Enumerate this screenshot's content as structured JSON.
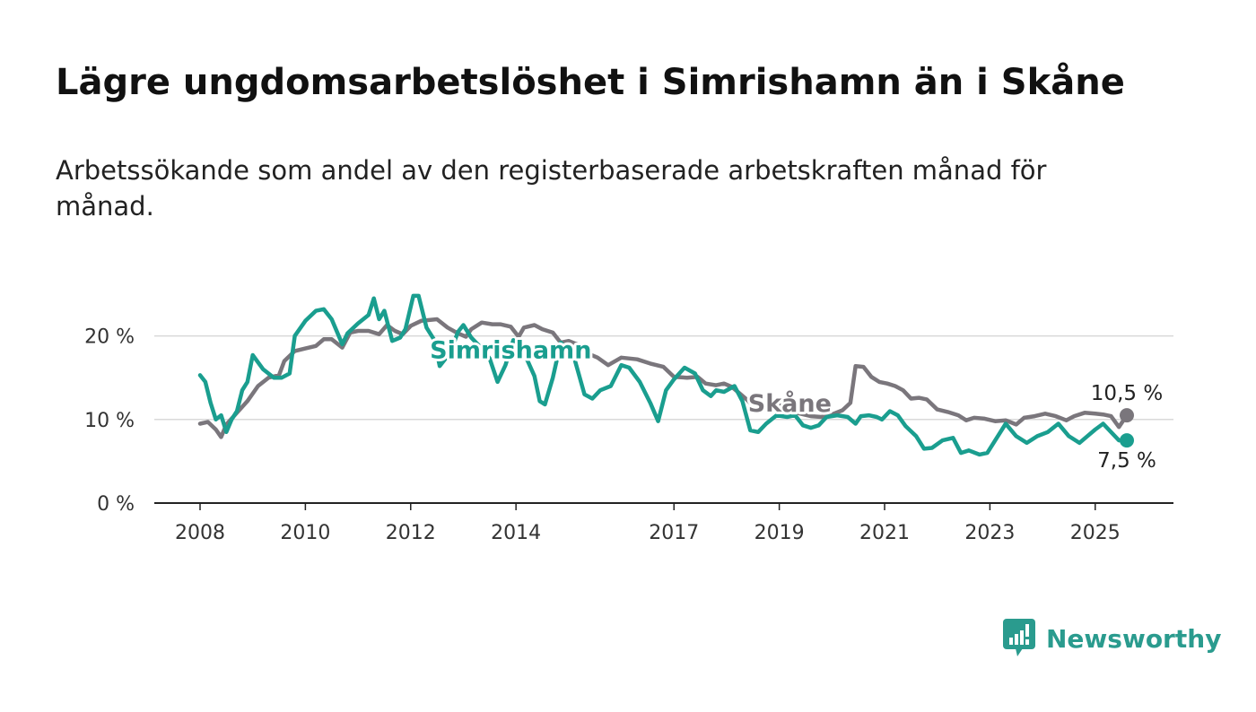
{
  "title": "Lägre ungdomsarbetslöshet i Simrishamn än i Skåne",
  "subtitle": "Arbetssökande som andel av den registerbaserade arbetskraften månad för månad.",
  "brand": {
    "name": "Newsworthy",
    "icon": "newsworthy-logo-icon",
    "color": "#2a9b8e"
  },
  "chart_data": {
    "type": "line",
    "title": "Lägre ungdomsarbetslöshet i Simrishamn än i Skåne",
    "subtitle": "Arbetssökande som andel av den registerbaserade arbetskraften månad för månad.",
    "xlim": [
      2008,
      2025.6
    ],
    "ylim": [
      0,
      25
    ],
    "x_ticks": [
      2008,
      2010,
      2012,
      2014,
      2017,
      2019,
      2021,
      2023,
      2025
    ],
    "x_tick_labels": [
      "2008",
      "2010",
      "2012",
      "2014",
      "2017",
      "2019",
      "2021",
      "2023",
      "2025"
    ],
    "y_ticks": [
      0,
      10,
      20
    ],
    "y_tick_labels": [
      "0 %",
      "10 %",
      "20 %"
    ],
    "grid": true,
    "series": [
      {
        "name": "Skåne",
        "color": "#7a767c",
        "end_label": "10,5 %",
        "points": [
          [
            2008.0,
            9.5
          ],
          [
            2008.15,
            9.7
          ],
          [
            2008.3,
            8.8
          ],
          [
            2008.4,
            7.9
          ],
          [
            2008.5,
            9.4
          ],
          [
            2008.7,
            10.8
          ],
          [
            2008.9,
            12.2
          ],
          [
            2009.1,
            14.0
          ],
          [
            2009.3,
            15.0
          ],
          [
            2009.5,
            15.3
          ],
          [
            2009.6,
            17.0
          ],
          [
            2009.8,
            18.2
          ],
          [
            2010.0,
            18.5
          ],
          [
            2010.2,
            18.8
          ],
          [
            2010.35,
            19.6
          ],
          [
            2010.5,
            19.6
          ],
          [
            2010.7,
            18.6
          ],
          [
            2010.85,
            20.4
          ],
          [
            2011.0,
            20.6
          ],
          [
            2011.2,
            20.6
          ],
          [
            2011.4,
            20.2
          ],
          [
            2011.55,
            21.3
          ],
          [
            2011.7,
            20.6
          ],
          [
            2011.85,
            20.2
          ],
          [
            2012.0,
            21.2
          ],
          [
            2012.2,
            21.8
          ],
          [
            2012.5,
            22.0
          ],
          [
            2012.7,
            21.0
          ],
          [
            2012.9,
            20.3
          ],
          [
            2013.05,
            19.9
          ],
          [
            2013.15,
            20.8
          ],
          [
            2013.35,
            21.6
          ],
          [
            2013.55,
            21.4
          ],
          [
            2013.7,
            21.4
          ],
          [
            2013.9,
            21.1
          ],
          [
            2014.05,
            19.9
          ],
          [
            2014.15,
            21.0
          ],
          [
            2014.35,
            21.3
          ],
          [
            2014.5,
            20.8
          ],
          [
            2014.7,
            20.4
          ],
          [
            2014.85,
            19.2
          ],
          [
            2015.0,
            19.4
          ],
          [
            2015.2,
            18.9
          ],
          [
            2015.4,
            17.8
          ],
          [
            2015.55,
            17.4
          ],
          [
            2015.75,
            16.5
          ],
          [
            2016.0,
            17.4
          ],
          [
            2016.3,
            17.2
          ],
          [
            2016.55,
            16.7
          ],
          [
            2016.8,
            16.3
          ],
          [
            2017.0,
            15.1
          ],
          [
            2017.25,
            15.0
          ],
          [
            2017.45,
            15.1
          ],
          [
            2017.6,
            14.3
          ],
          [
            2017.8,
            14.1
          ],
          [
            2017.95,
            14.3
          ],
          [
            2018.1,
            13.9
          ],
          [
            2018.25,
            13.1
          ],
          [
            2018.4,
            12.3
          ],
          [
            2018.55,
            11.3
          ],
          [
            2018.7,
            11.2
          ],
          [
            2018.85,
            12.0
          ],
          [
            2019.05,
            11.6
          ],
          [
            2019.2,
            11.0
          ],
          [
            2019.4,
            10.7
          ],
          [
            2019.6,
            10.4
          ],
          [
            2019.8,
            10.3
          ],
          [
            2020.0,
            10.6
          ],
          [
            2020.2,
            11.1
          ],
          [
            2020.35,
            12.0
          ],
          [
            2020.45,
            16.4
          ],
          [
            2020.6,
            16.3
          ],
          [
            2020.75,
            15.1
          ],
          [
            2020.9,
            14.5
          ],
          [
            2021.05,
            14.3
          ],
          [
            2021.2,
            14.0
          ],
          [
            2021.35,
            13.5
          ],
          [
            2021.5,
            12.5
          ],
          [
            2021.65,
            12.6
          ],
          [
            2021.8,
            12.4
          ],
          [
            2022.0,
            11.2
          ],
          [
            2022.2,
            10.9
          ],
          [
            2022.4,
            10.5
          ],
          [
            2022.55,
            9.9
          ],
          [
            2022.7,
            10.2
          ],
          [
            2022.9,
            10.1
          ],
          [
            2023.1,
            9.8
          ],
          [
            2023.3,
            9.9
          ],
          [
            2023.5,
            9.4
          ],
          [
            2023.65,
            10.2
          ],
          [
            2023.85,
            10.4
          ],
          [
            2024.05,
            10.7
          ],
          [
            2024.25,
            10.4
          ],
          [
            2024.45,
            9.9
          ],
          [
            2024.6,
            10.4
          ],
          [
            2024.8,
            10.8
          ],
          [
            2025.0,
            10.7
          ],
          [
            2025.15,
            10.6
          ],
          [
            2025.3,
            10.4
          ],
          [
            2025.45,
            9.1
          ],
          [
            2025.6,
            10.5
          ]
        ]
      },
      {
        "name": "Simrishamn",
        "color": "#1a9e8f",
        "end_label": "7,5 %",
        "points": [
          [
            2008.0,
            15.3
          ],
          [
            2008.1,
            14.5
          ],
          [
            2008.2,
            12.0
          ],
          [
            2008.3,
            10.0
          ],
          [
            2008.4,
            10.5
          ],
          [
            2008.5,
            8.5
          ],
          [
            2008.6,
            10.0
          ],
          [
            2008.7,
            11.0
          ],
          [
            2008.8,
            13.5
          ],
          [
            2008.9,
            14.5
          ],
          [
            2009.0,
            17.7
          ],
          [
            2009.2,
            16.0
          ],
          [
            2009.4,
            15.0
          ],
          [
            2009.55,
            15.0
          ],
          [
            2009.7,
            15.5
          ],
          [
            2009.8,
            20.0
          ],
          [
            2010.0,
            21.8
          ],
          [
            2010.2,
            23.0
          ],
          [
            2010.35,
            23.2
          ],
          [
            2010.5,
            22.0
          ],
          [
            2010.7,
            19.0
          ],
          [
            2010.8,
            20.3
          ],
          [
            2011.0,
            21.5
          ],
          [
            2011.2,
            22.5
          ],
          [
            2011.3,
            24.5
          ],
          [
            2011.4,
            22.0
          ],
          [
            2011.5,
            23.0
          ],
          [
            2011.65,
            19.4
          ],
          [
            2011.8,
            19.8
          ],
          [
            2011.9,
            20.8
          ],
          [
            2012.05,
            24.8
          ],
          [
            2012.15,
            24.8
          ],
          [
            2012.3,
            21.0
          ],
          [
            2012.45,
            19.5
          ],
          [
            2012.55,
            16.4
          ],
          [
            2012.75,
            18.0
          ],
          [
            2012.9,
            20.5
          ],
          [
            2013.0,
            21.3
          ],
          [
            2013.15,
            19.8
          ],
          [
            2013.35,
            18.5
          ],
          [
            2013.5,
            17.3
          ],
          [
            2013.65,
            14.5
          ],
          [
            2013.8,
            16.5
          ],
          [
            2013.95,
            19.5
          ],
          [
            2014.15,
            18.0
          ],
          [
            2014.35,
            15.2
          ],
          [
            2014.45,
            12.2
          ],
          [
            2014.55,
            11.8
          ],
          [
            2014.7,
            15.0
          ],
          [
            2014.85,
            19.2
          ],
          [
            2015.1,
            17.5
          ],
          [
            2015.3,
            13.0
          ],
          [
            2015.45,
            12.5
          ],
          [
            2015.6,
            13.5
          ],
          [
            2015.8,
            14.0
          ],
          [
            2016.0,
            16.5
          ],
          [
            2016.15,
            16.2
          ],
          [
            2016.35,
            14.5
          ],
          [
            2016.55,
            12.0
          ],
          [
            2016.7,
            9.8
          ],
          [
            2016.85,
            13.5
          ],
          [
            2017.0,
            14.8
          ],
          [
            2017.2,
            16.2
          ],
          [
            2017.4,
            15.5
          ],
          [
            2017.55,
            13.5
          ],
          [
            2017.7,
            12.8
          ],
          [
            2017.8,
            13.5
          ],
          [
            2017.95,
            13.3
          ],
          [
            2018.15,
            14.0
          ],
          [
            2018.3,
            12.2
          ],
          [
            2018.45,
            8.7
          ],
          [
            2018.6,
            8.5
          ],
          [
            2018.75,
            9.5
          ],
          [
            2018.95,
            10.5
          ],
          [
            2019.15,
            10.3
          ],
          [
            2019.3,
            10.5
          ],
          [
            2019.45,
            9.3
          ],
          [
            2019.6,
            9.0
          ],
          [
            2019.75,
            9.3
          ],
          [
            2019.9,
            10.3
          ],
          [
            2020.1,
            10.5
          ],
          [
            2020.3,
            10.3
          ],
          [
            2020.45,
            9.5
          ],
          [
            2020.55,
            10.4
          ],
          [
            2020.7,
            10.5
          ],
          [
            2020.85,
            10.3
          ],
          [
            2020.95,
            10.0
          ],
          [
            2021.1,
            11.0
          ],
          [
            2021.25,
            10.5
          ],
          [
            2021.4,
            9.2
          ],
          [
            2021.6,
            8.0
          ],
          [
            2021.75,
            6.5
          ],
          [
            2021.9,
            6.6
          ],
          [
            2022.1,
            7.5
          ],
          [
            2022.3,
            7.8
          ],
          [
            2022.45,
            6.0
          ],
          [
            2022.6,
            6.3
          ],
          [
            2022.8,
            5.8
          ],
          [
            2022.95,
            6.0
          ],
          [
            2023.1,
            7.5
          ],
          [
            2023.3,
            9.5
          ],
          [
            2023.5,
            8.0
          ],
          [
            2023.7,
            7.2
          ],
          [
            2023.9,
            8.0
          ],
          [
            2024.1,
            8.5
          ],
          [
            2024.3,
            9.5
          ],
          [
            2024.5,
            8.0
          ],
          [
            2024.7,
            7.2
          ],
          [
            2024.85,
            8.0
          ],
          [
            2025.0,
            8.8
          ],
          [
            2025.15,
            9.5
          ],
          [
            2025.3,
            8.5
          ],
          [
            2025.45,
            7.5
          ],
          [
            2025.6,
            7.5
          ]
        ]
      }
    ]
  }
}
